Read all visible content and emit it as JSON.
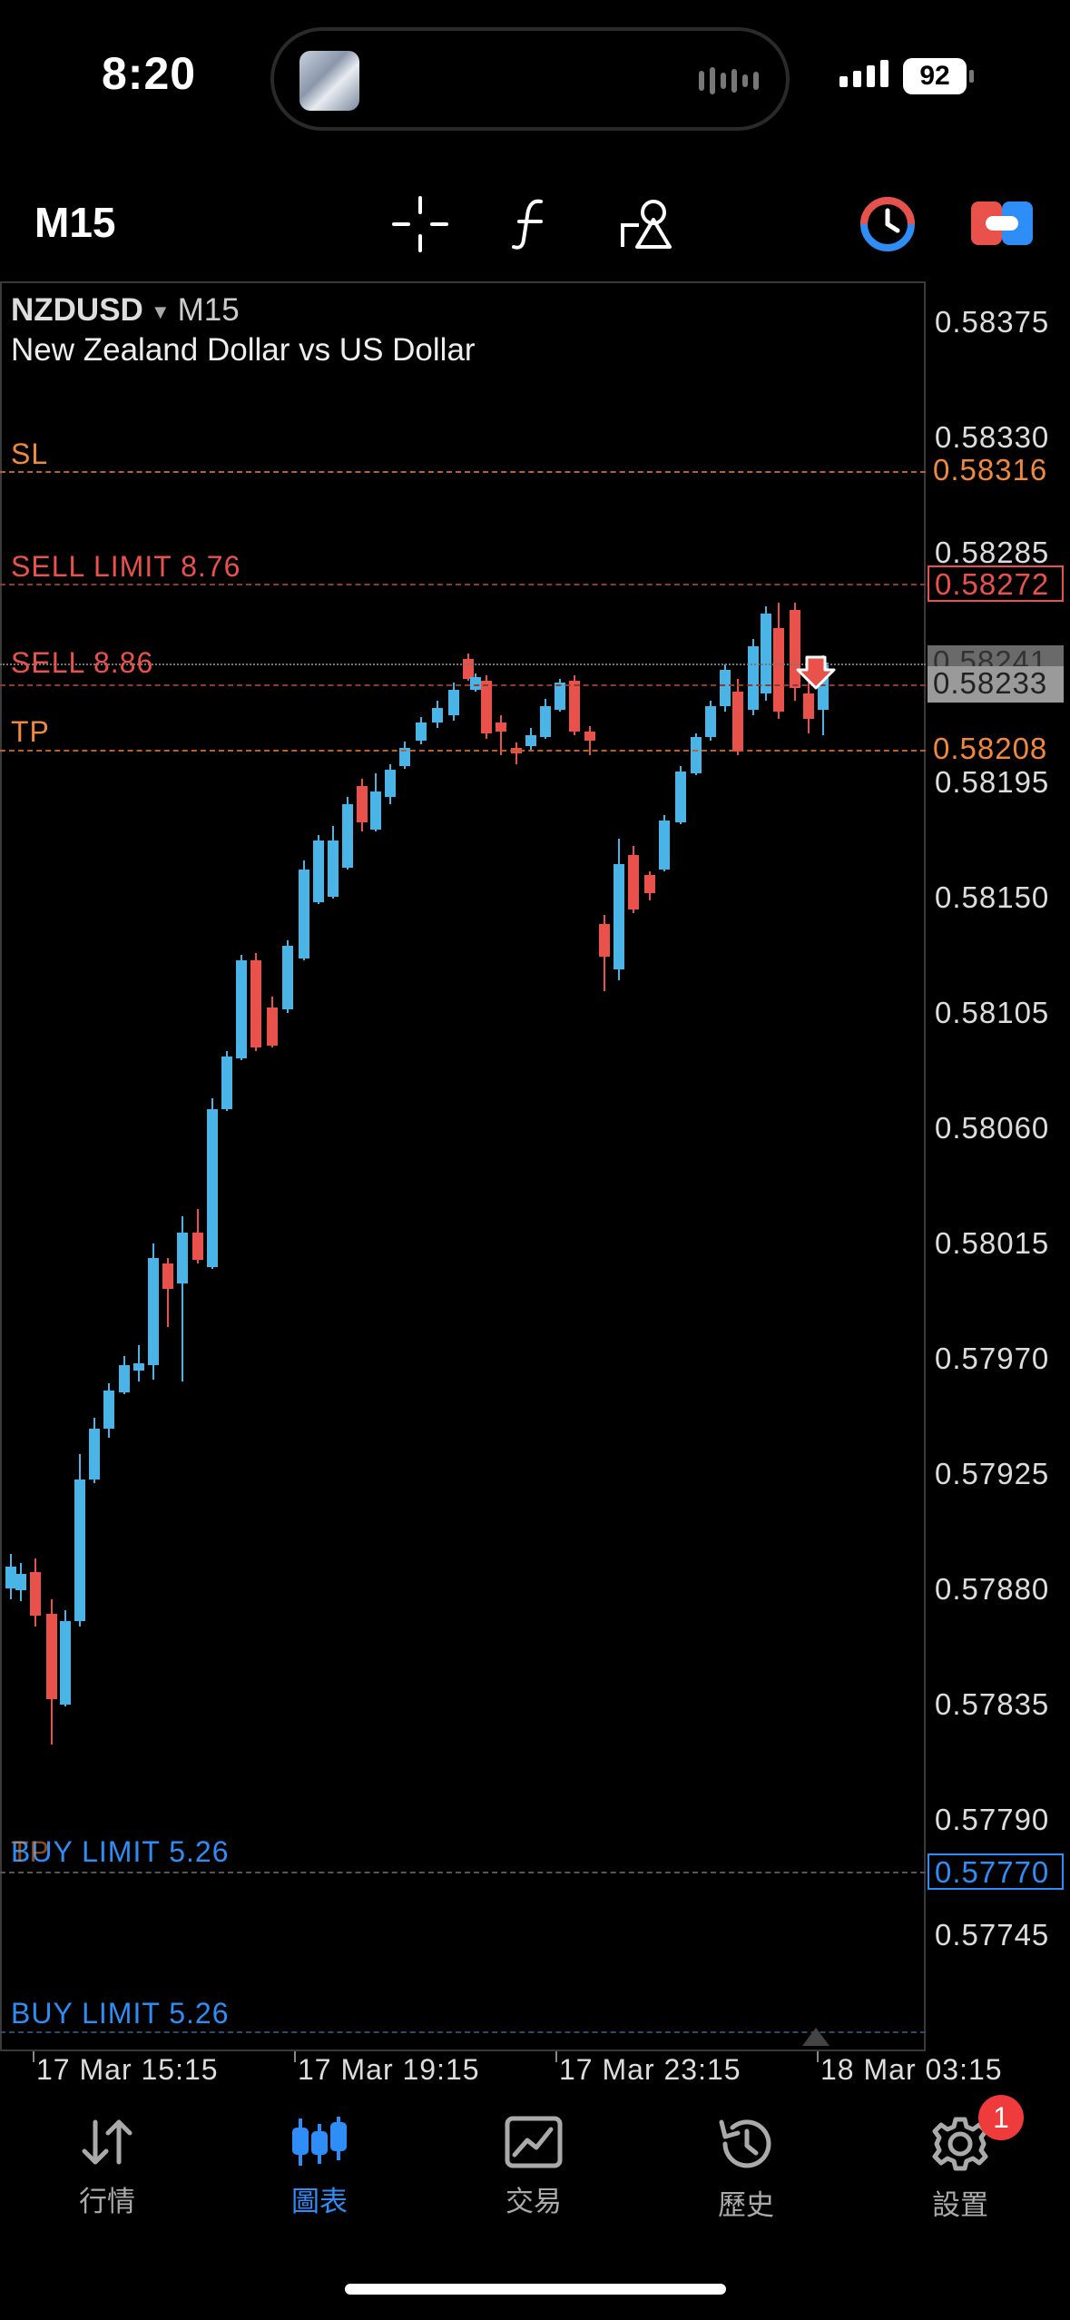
{
  "status_bar": {
    "time": "8:20",
    "battery": "92"
  },
  "toolbar": {
    "timeframe": "M15"
  },
  "chart": {
    "symbol": "NZDUSD",
    "timeframe": "M15",
    "description": "New Zealand Dollar vs US Dollar",
    "price_axis": [
      "0.58375",
      "0.58330",
      "0.58285",
      "0.58195",
      "0.58150",
      "0.58105",
      "0.58060",
      "0.58015",
      "0.57970",
      "0.57925",
      "0.57880",
      "0.57835",
      "0.57790",
      "0.57745"
    ],
    "levels": {
      "sl": {
        "label": "SL",
        "price": "0.58316",
        "color": "#f0883e"
      },
      "sell_limit": {
        "label": "SELL LIMIT 8.76",
        "price": "0.58272",
        "color": "#e8524a"
      },
      "sell": {
        "label": "SELL 8.86",
        "price": "0.58233",
        "color": "#e8524a"
      },
      "bid": {
        "price": "0.58241"
      },
      "tp": {
        "label": "TP",
        "price": "0.58208",
        "color": "#f0883e"
      },
      "buy_limit_1": {
        "label": "BUY LIMIT 5.26",
        "price": "0.57770",
        "color": "#2e8df7",
        "overlap_label": "TP"
      },
      "buy_limit_2": {
        "label": "BUY LIMIT 5.26",
        "color": "#2e8df7"
      }
    },
    "time_axis": [
      "17 Mar 15:15",
      "17 Mar 19:15",
      "17 Mar 23:15",
      "18 Mar 03:15"
    ],
    "colors": {
      "bull": "#4ab4e6",
      "bear": "#e8524a"
    }
  },
  "nav": {
    "items": [
      {
        "label": "行情",
        "icon": "quotes-icon"
      },
      {
        "label": "圖表",
        "icon": "chart-icon"
      },
      {
        "label": "交易",
        "icon": "trade-icon"
      },
      {
        "label": "歷史",
        "icon": "history-icon"
      },
      {
        "label": "設置",
        "icon": "settings-icon"
      }
    ],
    "active": "圖表",
    "settings_badge": "1"
  }
}
